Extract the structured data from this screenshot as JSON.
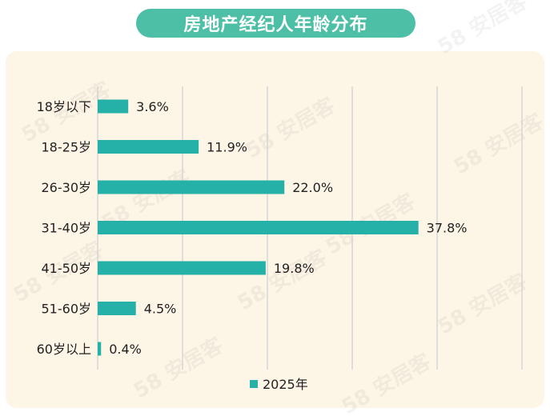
{
  "page_title": "房地产经纪人年龄分布",
  "watermark": "58 安居客",
  "colors": {
    "title_bg": "#4cbfa6",
    "bar": "#25b0a8",
    "panel_bg": "#fdf5e6",
    "grid": "#d6d6d6"
  },
  "chart_data": {
    "type": "bar",
    "orientation": "horizontal",
    "title": "房地产经纪人年龄分布",
    "categories": [
      "18岁以下",
      "18-25岁",
      "26-30岁",
      "31-40岁",
      "41-50岁",
      "51-60岁",
      "60岁以上"
    ],
    "series": [
      {
        "name": "2025年",
        "values": [
          3.6,
          11.9,
          22.0,
          37.8,
          19.8,
          4.5,
          0.4
        ]
      }
    ],
    "data_labels": [
      "3.6%",
      "11.9%",
      "22.0%",
      "37.8%",
      "19.8%",
      "4.5%",
      "0.4%"
    ],
    "xlim": [
      0,
      50
    ],
    "grid": true,
    "legend": "bottom-center"
  }
}
